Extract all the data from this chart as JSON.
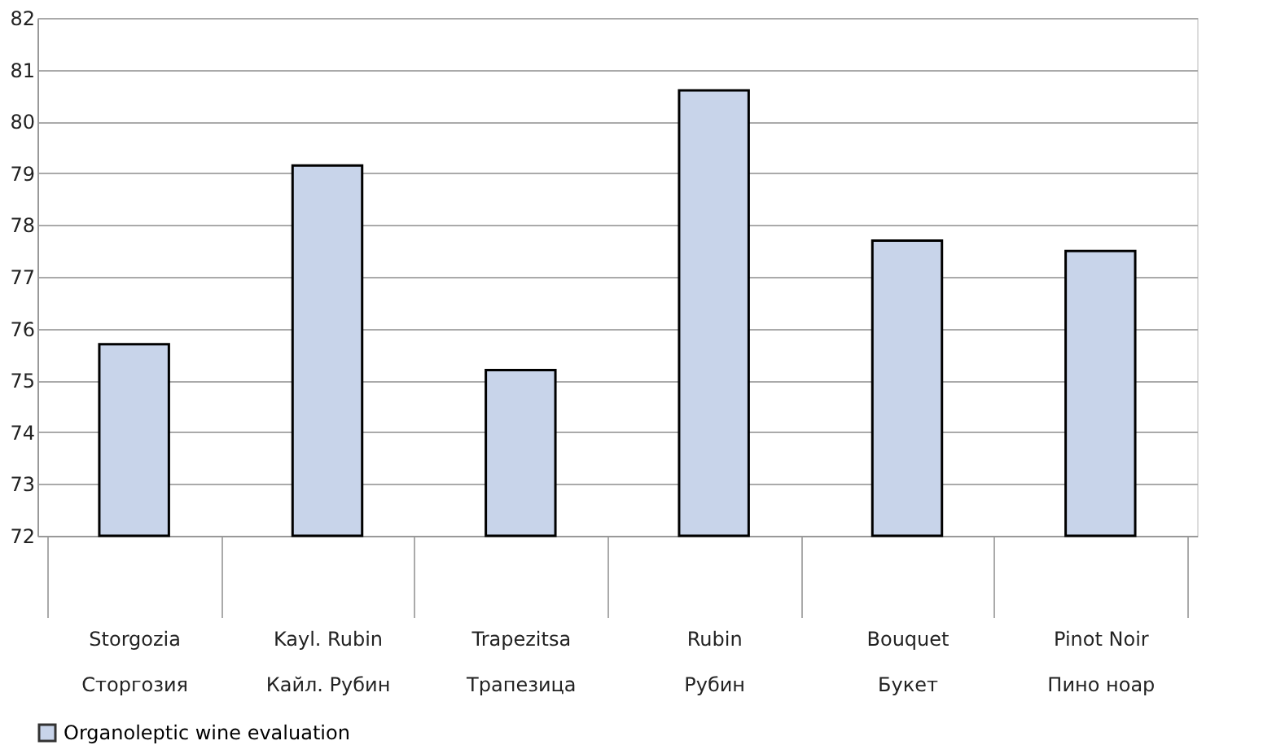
{
  "chart_data": {
    "type": "bar",
    "categories": [
      "Storgozia\nСторгозия",
      "Kayl. Rubin\nКайл. Рубин",
      "Trapezitsa\nТрапезица",
      "Rubin\nРубин",
      "Bouquet\nБукет",
      "Pinot Noir\nПино ноар"
    ],
    "series": [
      {
        "name": "Organoleptic wine evaluation",
        "color": "#c8d4ea",
        "values": [
          75.7,
          79.15,
          75.2,
          80.6,
          77.7,
          77.5
        ]
      }
    ],
    "ylim": [
      72,
      82
    ],
    "yticks": [
      72,
      73,
      74,
      75,
      76,
      77,
      78,
      79,
      80,
      81,
      82
    ],
    "grid": "y",
    "legend": "bottom"
  }
}
